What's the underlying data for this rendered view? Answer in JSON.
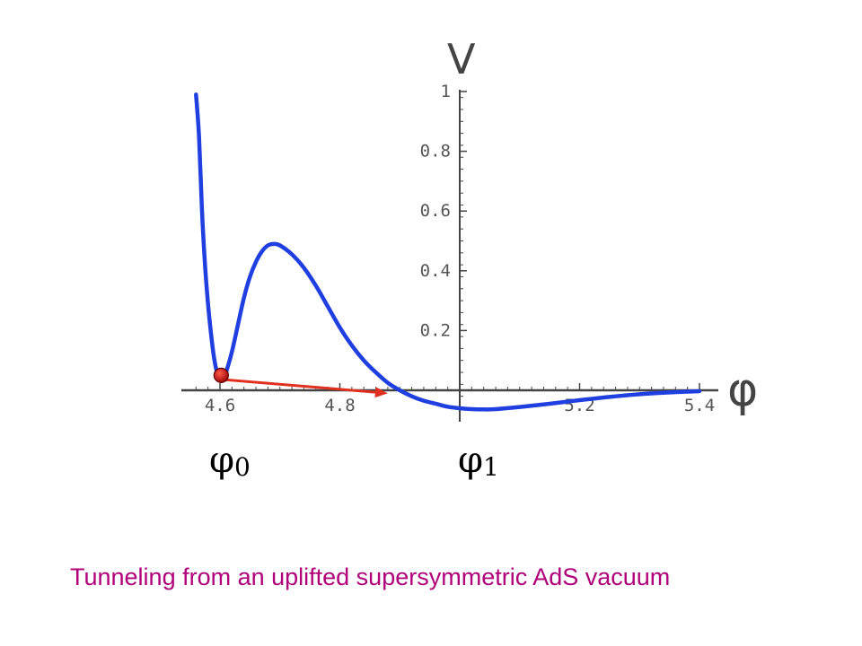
{
  "caption": "Tunneling from an uplifted supersymmetric AdS vacuum",
  "colors": {
    "curve": "#1f3fe0",
    "arrow": "#e03020",
    "ball": "#c81414",
    "caption": "#b0007a",
    "axis": "#444444"
  },
  "labels": {
    "phi0": "φ",
    "phi0_sub": "0",
    "phi1": "φ",
    "phi1_sub": "1"
  },
  "chart_data": {
    "type": "line",
    "title": "",
    "xlabel": "φ",
    "ylabel": "V",
    "xlim": [
      4.56,
      5.4
    ],
    "ylim": [
      -0.08,
      1.0
    ],
    "grid": false,
    "x_ticks": [
      {
        "value": 4.6,
        "label": "4.6"
      },
      {
        "value": 4.8,
        "label": "4.8"
      },
      {
        "value": 5.2,
        "label": "5.2"
      },
      {
        "value": 5.4,
        "label": "5.4"
      }
    ],
    "y_ticks": [
      {
        "value": 0.2,
        "label": "0.2"
      },
      {
        "value": 0.4,
        "label": "0.4"
      },
      {
        "value": 0.6,
        "label": "0.6"
      },
      {
        "value": 0.8,
        "label": "0.8"
      },
      {
        "value": 1.0,
        "label": "1"
      }
    ],
    "y_axis_at_x": 5.0,
    "series": [
      {
        "points": [
          [
            4.56,
            0.99
          ],
          [
            4.565,
            0.85
          ],
          [
            4.57,
            0.6
          ],
          [
            4.575,
            0.42
          ],
          [
            4.58,
            0.29
          ],
          [
            4.585,
            0.19
          ],
          [
            4.59,
            0.11
          ],
          [
            4.595,
            0.06
          ],
          [
            4.6,
            0.035
          ],
          [
            4.605,
            0.04
          ],
          [
            4.61,
            0.06
          ],
          [
            4.62,
            0.13
          ],
          [
            4.63,
            0.22
          ],
          [
            4.64,
            0.31
          ],
          [
            4.65,
            0.38
          ],
          [
            4.66,
            0.43
          ],
          [
            4.67,
            0.465
          ],
          [
            4.68,
            0.485
          ],
          [
            4.69,
            0.49
          ],
          [
            4.7,
            0.485
          ],
          [
            4.72,
            0.455
          ],
          [
            4.74,
            0.41
          ],
          [
            4.76,
            0.35
          ],
          [
            4.78,
            0.28
          ],
          [
            4.8,
            0.21
          ],
          [
            4.82,
            0.15
          ],
          [
            4.84,
            0.1
          ],
          [
            4.86,
            0.06
          ],
          [
            4.88,
            0.025
          ],
          [
            4.9,
            0.0
          ],
          [
            4.92,
            -0.02
          ],
          [
            4.94,
            -0.035
          ],
          [
            4.96,
            -0.045
          ],
          [
            4.98,
            -0.055
          ],
          [
            5.0,
            -0.06
          ],
          [
            5.02,
            -0.063
          ],
          [
            5.04,
            -0.064
          ],
          [
            5.06,
            -0.063
          ],
          [
            5.1,
            -0.056
          ],
          [
            5.15,
            -0.045
          ],
          [
            5.2,
            -0.033
          ],
          [
            5.25,
            -0.022
          ],
          [
            5.3,
            -0.013
          ],
          [
            5.35,
            -0.007
          ],
          [
            5.4,
            -0.003
          ]
        ]
      }
    ],
    "annotations": [
      {
        "type": "ball",
        "x": 4.602,
        "y": 0.05
      },
      {
        "type": "arrow",
        "from": [
          4.61,
          0.035
        ],
        "to": [
          4.88,
          -0.01
        ]
      }
    ]
  }
}
